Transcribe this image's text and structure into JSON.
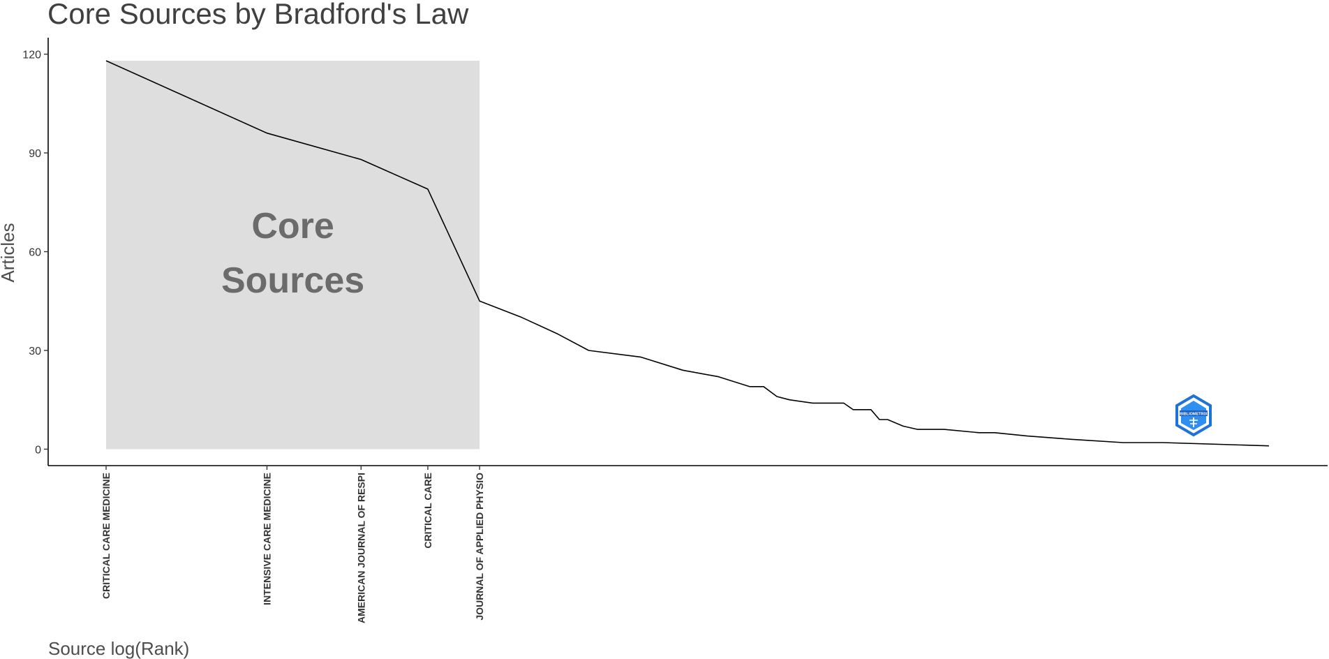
{
  "chart_data": {
    "type": "line",
    "title": "Core Sources by Bradford's Law",
    "xlabel": "Source log(Rank)",
    "ylabel": "Articles",
    "x_scale": "log",
    "ylim": [
      -5,
      125
    ],
    "y_ticks": [
      0,
      30,
      60,
      90,
      120
    ],
    "grid": false,
    "legend": "none",
    "core_zone": {
      "label_lines": [
        "Core",
        "Sources"
      ],
      "rank_range": [
        1,
        5
      ],
      "fill": "#dedede"
    },
    "x_tick_labels": [
      {
        "rank": 1,
        "label": "CRITICAL CARE MEDICINE"
      },
      {
        "rank": 2,
        "label": "INTENSIVE CARE MEDICINE"
      },
      {
        "rank": 3,
        "label": "AMERICAN JOURNAL OF RESPI"
      },
      {
        "rank": 4,
        "label": "CRITICAL CARE"
      },
      {
        "rank": 5,
        "label": "JOURNAL OF APPLIED PHYSIO"
      }
    ],
    "series": [
      {
        "x": [
          1,
          2,
          3,
          4,
          5,
          6,
          7,
          8,
          10,
          12,
          14,
          16,
          17,
          18,
          19,
          21,
          24,
          25,
          27,
          28,
          29,
          31,
          33,
          37,
          43,
          46,
          53,
          64,
          80,
          95,
          150
        ],
        "y": [
          118,
          96,
          88,
          79,
          45,
          40,
          35,
          30,
          28,
          24,
          22,
          19,
          19,
          16,
          15,
          14,
          14,
          12,
          12,
          9,
          9,
          7,
          6,
          6,
          5,
          5,
          4,
          3,
          2,
          2,
          1
        ],
        "color": "#000000"
      }
    ]
  },
  "watermark": {
    "name": "bibliometrix-logo-icon",
    "text": "BIBLIOMETRIX",
    "color": "#2f7fe0"
  }
}
